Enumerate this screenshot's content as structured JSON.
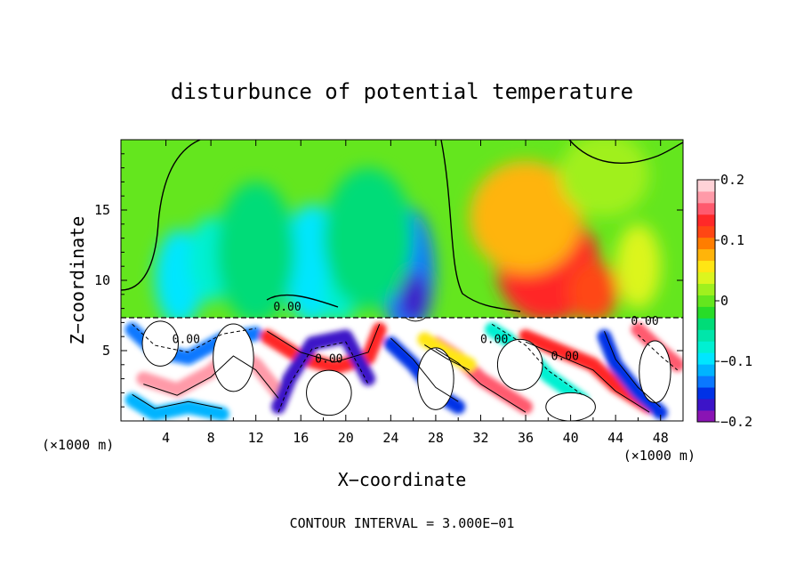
{
  "chart_data": {
    "type": "heatmap",
    "title": "disturbunce of potential temperature",
    "xlabel": "X−coordinate",
    "ylabel": "Z−coordinate",
    "x_unit_left": "(×1000 m)",
    "x_unit_right": "(×1000 m)",
    "x_ticks": [
      "4",
      "8",
      "12",
      "16",
      "20",
      "24",
      "28",
      "32",
      "36",
      "40",
      "44",
      "48"
    ],
    "x_tick_values": [
      4,
      8,
      12,
      16,
      20,
      24,
      28,
      32,
      36,
      40,
      44,
      48
    ],
    "y_ticks": [
      "5",
      "10",
      "15"
    ],
    "y_tick_values": [
      5,
      10,
      15
    ],
    "xlim": [
      0,
      50
    ],
    "ylim": [
      0,
      20
    ],
    "colorbar": {
      "tick_labels": [
        "0.2",
        "0.1",
        "0",
        "−0.1",
        "−0.2"
      ],
      "tick_values": [
        0.2,
        0.1,
        0,
        -0.1,
        -0.2
      ],
      "range": [
        -0.2,
        0.2
      ],
      "colors": [
        "#8a14b4",
        "#3c14c8",
        "#0032e6",
        "#0a78ff",
        "#00b4ff",
        "#00e6ff",
        "#00f0d2",
        "#00e6aa",
        "#00dc78",
        "#28dc28",
        "#64e61e",
        "#a0f01e",
        "#dcf51e",
        "#ffe614",
        "#ffb40a",
        "#ff7d00",
        "#ff4614",
        "#ff2828",
        "#ff5a6e",
        "#ff9aa8",
        "#ffd2d7"
      ]
    },
    "contour_labels": [
      {
        "text": "0.00",
        "x": 14.8,
        "z": 8.1
      },
      {
        "text": "0.00",
        "x": 5.8,
        "z": 5.8
      },
      {
        "text": "0.00",
        "x": 18.5,
        "z": 4.4
      },
      {
        "text": "0.00",
        "x": 33.2,
        "z": 5.8
      },
      {
        "text": "0.00",
        "x": 39.5,
        "z": 4.6
      },
      {
        "text": "0.00",
        "x": 46.6,
        "z": 7.1
      }
    ],
    "footer": "CONTOUR INTERVAL = 3.000E−01",
    "blobs": [
      {
        "x": 5.2,
        "z": 10.2,
        "rx": 2.2,
        "rz": 3.4,
        "v": -0.1
      },
      {
        "x": 8.0,
        "z": 11.5,
        "rx": 2.0,
        "rz": 3.0,
        "v": -0.08
      },
      {
        "x": 17.0,
        "z": 11.2,
        "rx": 2.6,
        "rz": 4.2,
        "v": -0.1
      },
      {
        "x": 19.5,
        "z": 9.0,
        "rx": 1.5,
        "rz": 2.0,
        "v": -0.08
      },
      {
        "x": 25.5,
        "z": 10.6,
        "rx": 2.4,
        "rz": 4.6,
        "v": -0.13
      },
      {
        "x": 26.0,
        "z": 8.8,
        "rx": 1.3,
        "rz": 1.8,
        "v": -0.18
      },
      {
        "x": 12.0,
        "z": 12.0,
        "rx": 3.5,
        "rz": 5.0,
        "v": -0.04
      },
      {
        "x": 22.0,
        "z": 13.0,
        "rx": 4.0,
        "rz": 5.0,
        "v": -0.04
      },
      {
        "x": 38.0,
        "z": 11.0,
        "rx": 4.6,
        "rz": 4.0,
        "v": 0.14
      },
      {
        "x": 36.0,
        "z": 14.5,
        "rx": 5.0,
        "rz": 4.0,
        "v": 0.07
      },
      {
        "x": 42.0,
        "z": 9.2,
        "rx": 2.2,
        "rz": 2.2,
        "v": 0.12
      },
      {
        "x": 46.0,
        "z": 11.0,
        "rx": 2.0,
        "rz": 3.0,
        "v": 0.03
      },
      {
        "x": 43.0,
        "z": 17.5,
        "rx": 4.0,
        "rz": 3.0,
        "v": 0.02
      }
    ],
    "ribbons": [
      {
        "d": [
          [
            1,
            6.5
          ],
          [
            3,
            5.0
          ],
          [
            6,
            4.5
          ],
          [
            9,
            5.8
          ],
          [
            12,
            6.2
          ]
        ],
        "v": -0.13
      },
      {
        "d": [
          [
            2,
            3.0
          ],
          [
            5,
            2.2
          ],
          [
            8,
            3.5
          ],
          [
            10,
            5.0
          ],
          [
            12,
            4.0
          ],
          [
            14,
            2.0
          ]
        ],
        "v": 0.18
      },
      {
        "d": [
          [
            13,
            6.0
          ],
          [
            16,
            4.5
          ],
          [
            19,
            3.8
          ],
          [
            22,
            4.5
          ],
          [
            23,
            6.5
          ]
        ],
        "v": 0.13
      },
      {
        "d": [
          [
            14,
            1.0
          ],
          [
            15,
            3.0
          ],
          [
            17,
            5.5
          ],
          [
            20,
            6.0
          ],
          [
            22,
            3.0
          ]
        ],
        "v": -0.18
      },
      {
        "d": [
          [
            24,
            5.5
          ],
          [
            26,
            4.0
          ],
          [
            28,
            2.0
          ],
          [
            30,
            1.0
          ]
        ],
        "v": -0.15
      },
      {
        "d": [
          [
            28,
            5.5
          ],
          [
            30,
            4.5
          ],
          [
            32,
            3.0
          ],
          [
            34,
            2.0
          ],
          [
            36,
            1.0
          ]
        ],
        "v": 0.15
      },
      {
        "d": [
          [
            33,
            6.5
          ],
          [
            36,
            5.0
          ],
          [
            38,
            3.2
          ],
          [
            41,
            1.5
          ]
        ],
        "v": -0.08
      },
      {
        "d": [
          [
            36,
            6.0
          ],
          [
            39,
            5.0
          ],
          [
            42,
            4.0
          ],
          [
            44,
            2.5
          ],
          [
            47,
            1.0
          ]
        ],
        "v": 0.13
      },
      {
        "d": [
          [
            43,
            6.0
          ],
          [
            44,
            4.0
          ],
          [
            46,
            2.0
          ],
          [
            48,
            0.6
          ]
        ],
        "v": -0.16
      },
      {
        "d": [
          [
            46,
            6.5
          ],
          [
            48,
            5.0
          ],
          [
            49.5,
            4.0
          ]
        ],
        "v": 0.16
      },
      {
        "d": [
          [
            1,
            1.5
          ],
          [
            3,
            0.5
          ],
          [
            6,
            1.0
          ],
          [
            9,
            0.5
          ]
        ],
        "v": -0.12
      },
      {
        "d": [
          [
            27,
            5.8
          ],
          [
            29,
            4.8
          ],
          [
            31,
            4.0
          ]
        ],
        "v": 0.05
      }
    ],
    "white_patches": [
      {
        "x": 3.5,
        "z": 5.5,
        "rx": 1.6,
        "rz": 1.6
      },
      {
        "x": 10.0,
        "z": 4.5,
        "rx": 1.8,
        "rz": 2.4
      },
      {
        "x": 18.5,
        "z": 2.0,
        "rx": 2.0,
        "rz": 1.6
      },
      {
        "x": 28.0,
        "z": 3.0,
        "rx": 1.6,
        "rz": 2.2
      },
      {
        "x": 35.5,
        "z": 4.0,
        "rx": 2.0,
        "rz": 1.8
      },
      {
        "x": 40.0,
        "z": 1.0,
        "rx": 2.2,
        "rz": 1.0
      },
      {
        "x": 47.5,
        "z": 3.5,
        "rx": 1.4,
        "rz": 2.2
      },
      {
        "x": 26.2,
        "z": 7.6,
        "rx": 1.0,
        "rz": 0.5
      }
    ]
  }
}
